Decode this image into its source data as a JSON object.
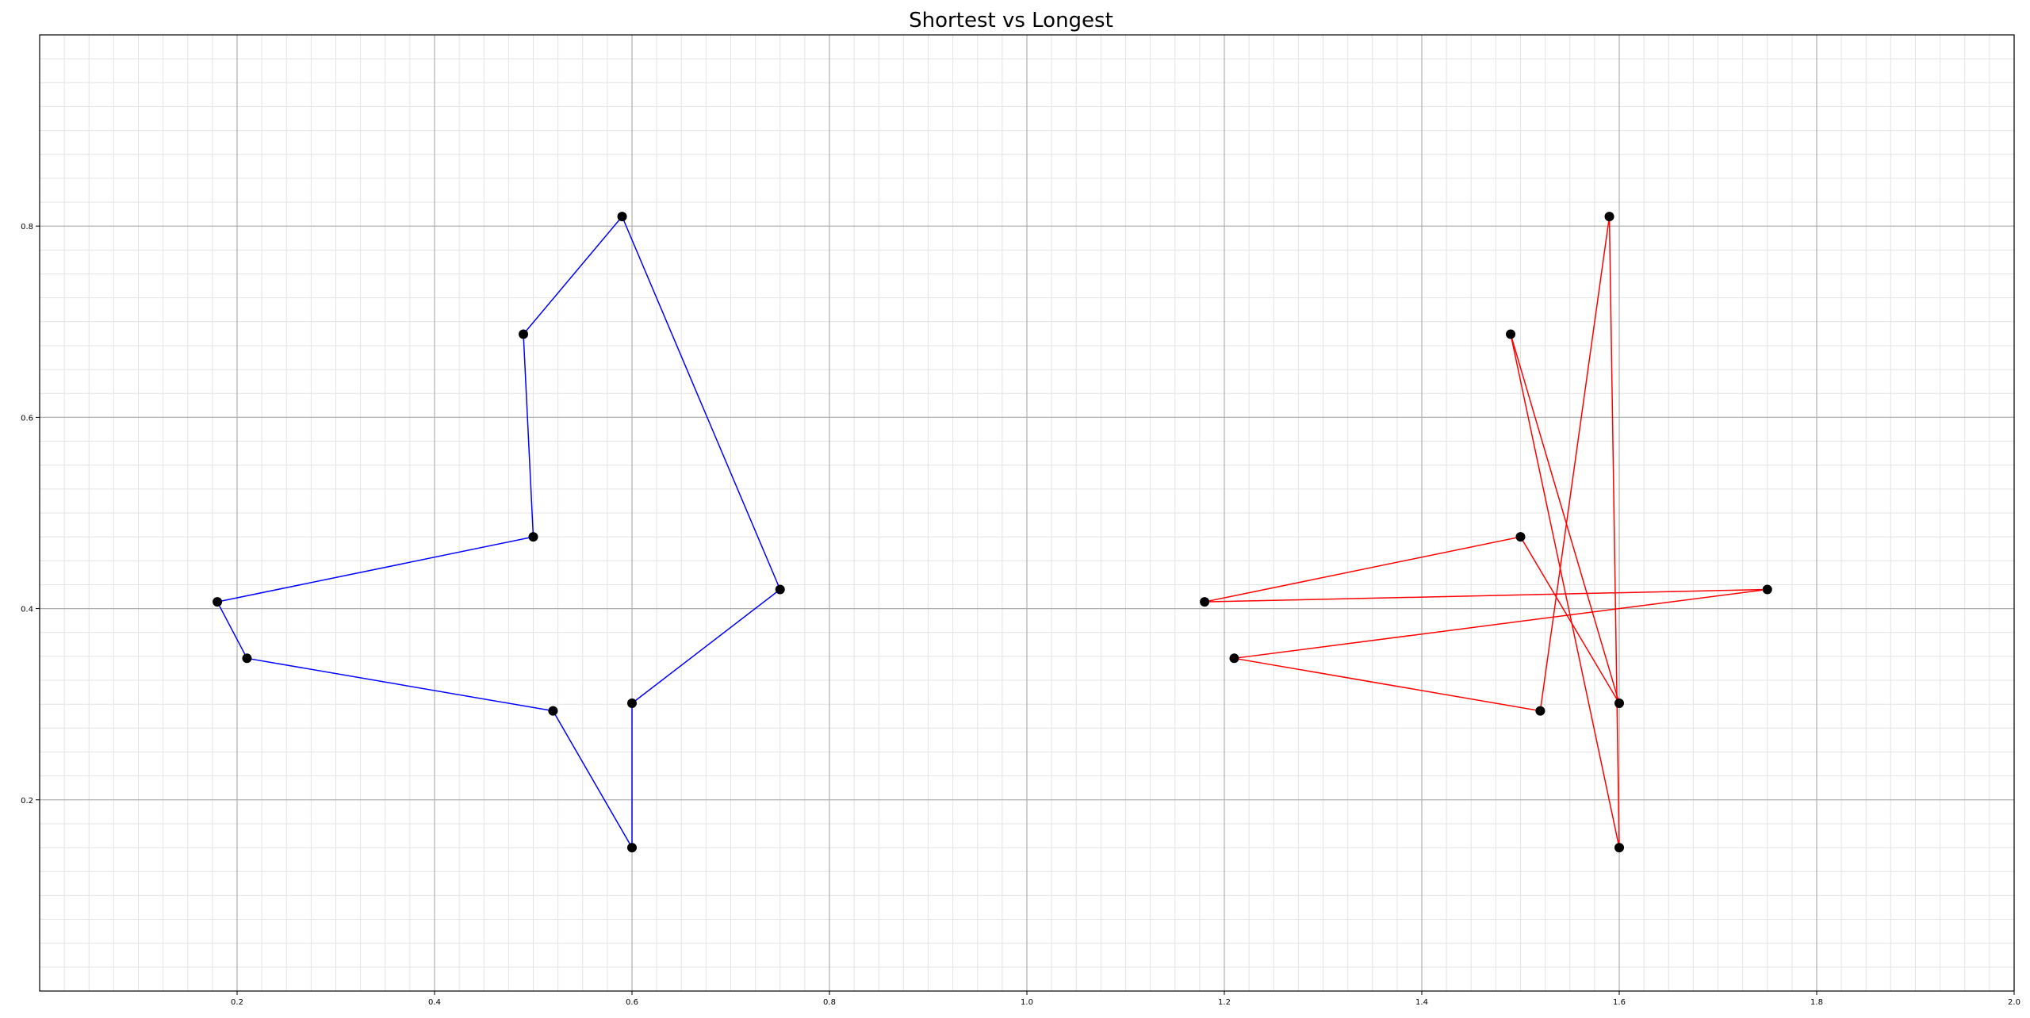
{
  "chart_data": {
    "type": "line",
    "title": "Shortest vs Longest",
    "xlabel": "",
    "ylabel": "",
    "xlim": [
      0.0,
      2.0
    ],
    "ylim": [
      0.0,
      1.0
    ],
    "x_ticks": [
      0.2,
      0.4,
      0.6,
      0.8,
      1.0,
      1.2,
      1.4,
      1.6,
      1.8,
      2.0
    ],
    "x_tick_labels": [
      "0.2",
      "0.4",
      "0.6",
      "0.8",
      "1.0",
      "1.2",
      "1.4",
      "1.6",
      "1.8",
      "2.0"
    ],
    "y_ticks": [
      0.2,
      0.4,
      0.6,
      0.8
    ],
    "y_tick_labels": [
      "0.2",
      "0.4",
      "0.6",
      "0.8"
    ],
    "grid": true,
    "minor_grid": true,
    "legend": "none",
    "points": {
      "x": [
        0.59,
        0.49,
        0.5,
        0.18,
        0.21,
        0.52,
        0.6,
        0.6,
        0.75
      ],
      "y": [
        0.81,
        0.687,
        0.475,
        0.407,
        0.348,
        0.293,
        0.15,
        0.301,
        0.42
      ],
      "color": "#000000"
    },
    "series": [
      {
        "color": "#0000ff",
        "x": [
          0.59,
          0.49,
          0.5,
          0.18,
          0.21,
          0.52,
          0.6,
          0.6,
          0.75,
          0.59
        ],
        "y": [
          0.81,
          0.687,
          0.475,
          0.407,
          0.348,
          0.293,
          0.15,
          0.301,
          0.42,
          0.81
        ]
      },
      {
        "color": "#ff0000",
        "x": [
          1.59,
          1.6,
          1.49,
          1.6,
          1.5,
          1.18,
          1.75,
          1.21,
          1.52,
          1.59
        ],
        "y": [
          0.81,
          0.15,
          0.687,
          0.301,
          0.475,
          0.407,
          0.42,
          0.348,
          0.293,
          0.81
        ]
      }
    ],
    "right_points": {
      "x": [
        1.59,
        1.49,
        1.5,
        1.18,
        1.21,
        1.52,
        1.6,
        1.6,
        1.75
      ],
      "y": [
        0.81,
        0.687,
        0.475,
        0.407,
        0.348,
        0.293,
        0.15,
        0.301,
        0.42
      ],
      "color": "#000000"
    }
  }
}
